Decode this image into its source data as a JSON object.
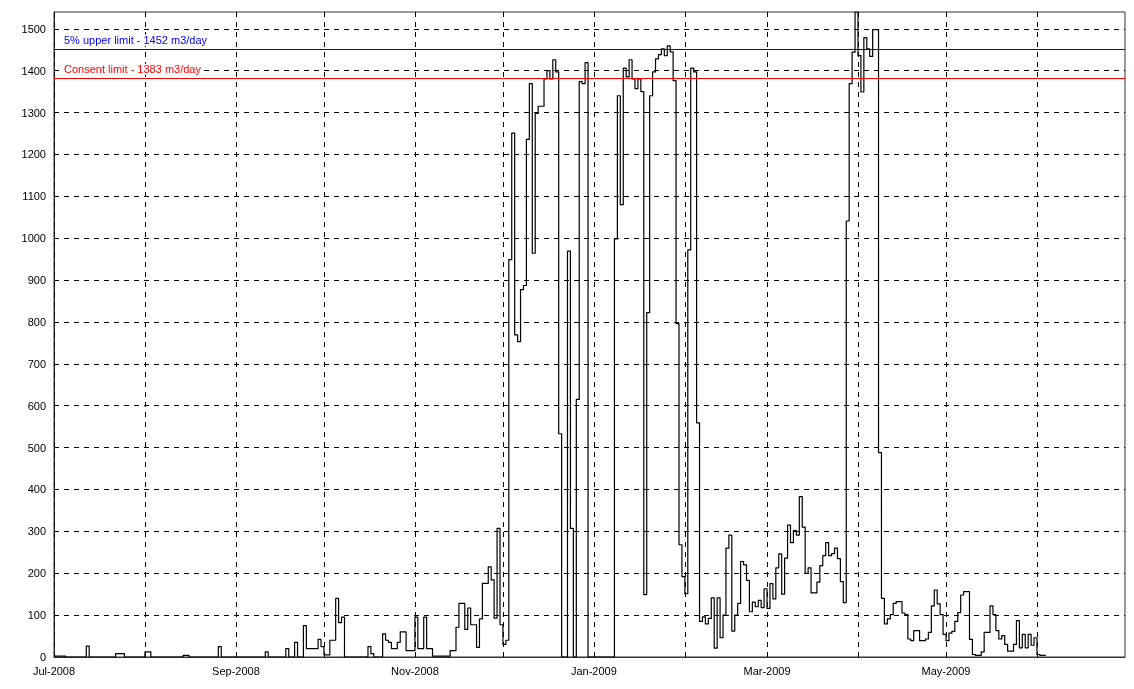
{
  "chart_data": {
    "type": "step",
    "xlim": [
      "2008-07-01",
      "2009-07-01"
    ],
    "xticks": [
      {
        "value": "2008-07-01",
        "label": "Jul-2008"
      },
      {
        "value": "2008-08-01",
        "label": null
      },
      {
        "value": "2008-09-01",
        "label": "Sep-2008"
      },
      {
        "value": "2008-10-01",
        "label": null
      },
      {
        "value": "2008-11-01",
        "label": "Nov-2008"
      },
      {
        "value": "2008-12-01",
        "label": null
      },
      {
        "value": "2009-01-01",
        "label": "Jan-2009"
      },
      {
        "value": "2009-02-01",
        "label": null
      },
      {
        "value": "2009-03-01",
        "label": "Mar-2009"
      },
      {
        "value": "2009-04-01",
        "label": null
      },
      {
        "value": "2009-05-01",
        "label": "May-2009"
      },
      {
        "value": "2009-06-01",
        "label": null
      }
    ],
    "ylim": [
      0,
      1540
    ],
    "yticks": [
      0,
      100,
      200,
      300,
      400,
      500,
      600,
      700,
      800,
      900,
      1000,
      1100,
      1200,
      1300,
      1400,
      1500
    ],
    "grid": true,
    "marker": "none",
    "line_style": "solid",
    "ref_lines": [
      {
        "axis": "y",
        "value": 1452,
        "label": "5% upper limit - 1452 m3/day",
        "color": "#0000ff"
      },
      {
        "axis": "y",
        "value": 1383,
        "label": "Consent limit - 1383 m3/day",
        "color": "#ff0000"
      }
    ],
    "series": [
      {
        "color": "#000000",
        "x": [
          "2008-07-01",
          "2008-07-05",
          "2008-07-12",
          "2008-07-13",
          "2008-07-22",
          "2008-07-25",
          "2008-08-01",
          "2008-08-03",
          "2008-08-14",
          "2008-08-16",
          "2008-08-26",
          "2008-08-27",
          "2008-09-11",
          "2008-09-12",
          "2008-09-18",
          "2008-09-19",
          "2008-09-21",
          "2008-09-22",
          "2008-09-24",
          "2008-09-25",
          "2008-09-29",
          "2008-09-30",
          "2008-10-01",
          "2008-10-03",
          "2008-10-05",
          "2008-10-06",
          "2008-10-07",
          "2008-10-08",
          "2008-10-16",
          "2008-10-17",
          "2008-10-18",
          "2008-10-21",
          "2008-10-22",
          "2008-10-23",
          "2008-10-24",
          "2008-10-26",
          "2008-10-27",
          "2008-10-29",
          "2008-11-01",
          "2008-11-02",
          "2008-11-04",
          "2008-11-05",
          "2008-11-07",
          "2008-11-13",
          "2008-11-15",
          "2008-11-16",
          "2008-11-18",
          "2008-11-19",
          "2008-11-20",
          "2008-11-22",
          "2008-11-23",
          "2008-11-24",
          "2008-11-26",
          "2008-11-27",
          "2008-11-28",
          "2008-11-29",
          "2008-11-30",
          "2008-12-01",
          "2008-12-02",
          "2008-12-03",
          "2008-12-04",
          "2008-12-05",
          "2008-12-06",
          "2008-12-07",
          "2008-12-08",
          "2008-12-09",
          "2008-12-10",
          "2008-12-11",
          "2008-12-12",
          "2008-12-13",
          "2008-12-15",
          "2008-12-16",
          "2008-12-17",
          "2008-12-18",
          "2008-12-19",
          "2008-12-20",
          "2008-12-21",
          "2008-12-23",
          "2008-12-24",
          "2008-12-25",
          "2008-12-26",
          "2008-12-27",
          "2008-12-28",
          "2008-12-29",
          "2008-12-30",
          "2009-01-08",
          "2009-01-09",
          "2009-01-10",
          "2009-01-11",
          "2009-01-12",
          "2009-01-13",
          "2009-01-14",
          "2009-01-15",
          "2009-01-16",
          "2009-01-17",
          "2009-01-18",
          "2009-01-19",
          "2009-01-20",
          "2009-01-21",
          "2009-01-22",
          "2009-01-23",
          "2009-01-24",
          "2009-01-25",
          "2009-01-26",
          "2009-01-27",
          "2009-01-28",
          "2009-01-29",
          "2009-01-30",
          "2009-01-31",
          "2009-02-01",
          "2009-02-02",
          "2009-02-03",
          "2009-02-04",
          "2009-02-05",
          "2009-02-06",
          "2009-02-07",
          "2009-02-08",
          "2009-02-09",
          "2009-02-10",
          "2009-02-11",
          "2009-02-12",
          "2009-02-13",
          "2009-02-14",
          "2009-02-15",
          "2009-02-16",
          "2009-02-17",
          "2009-02-18",
          "2009-02-19",
          "2009-02-20",
          "2009-02-21",
          "2009-02-22",
          "2009-02-23",
          "2009-02-24",
          "2009-02-25",
          "2009-02-26",
          "2009-02-27",
          "2009-02-28",
          "2009-03-01",
          "2009-03-02",
          "2009-03-03",
          "2009-03-04",
          "2009-03-05",
          "2009-03-06",
          "2009-03-07",
          "2009-03-08",
          "2009-03-09",
          "2009-03-10",
          "2009-03-11",
          "2009-03-12",
          "2009-03-13",
          "2009-03-14",
          "2009-03-15",
          "2009-03-16",
          "2009-03-18",
          "2009-03-19",
          "2009-03-20",
          "2009-03-21",
          "2009-03-22",
          "2009-03-23",
          "2009-03-24",
          "2009-03-25",
          "2009-03-26",
          "2009-03-27",
          "2009-03-28",
          "2009-03-29",
          "2009-03-30",
          "2009-03-31",
          "2009-04-01",
          "2009-04-02",
          "2009-04-03",
          "2009-04-04",
          "2009-04-05",
          "2009-04-06",
          "2009-04-08",
          "2009-04-09",
          "2009-04-10",
          "2009-04-11",
          "2009-04-12",
          "2009-04-13",
          "2009-04-14",
          "2009-04-16",
          "2009-04-17",
          "2009-04-18",
          "2009-04-19",
          "2009-04-20",
          "2009-04-22",
          "2009-04-24",
          "2009-04-25",
          "2009-04-26",
          "2009-04-27",
          "2009-04-28",
          "2009-04-29",
          "2009-04-30",
          "2009-05-01",
          "2009-05-02",
          "2009-05-03",
          "2009-05-04",
          "2009-05-05",
          "2009-05-06",
          "2009-05-07",
          "2009-05-09",
          "2009-05-10",
          "2009-05-11",
          "2009-05-13",
          "2009-05-14",
          "2009-05-16",
          "2009-05-17",
          "2009-05-18",
          "2009-05-19",
          "2009-05-20",
          "2009-05-21",
          "2009-05-22",
          "2009-05-24",
          "2009-05-25",
          "2009-05-26",
          "2009-05-27",
          "2009-05-28",
          "2009-05-29",
          "2009-05-30",
          "2009-05-31",
          "2009-06-01",
          "2009-06-02",
          "2009-06-04"
        ],
        "values": [
          2,
          0,
          26,
          0,
          8,
          0,
          12,
          0,
          4,
          0,
          25,
          0,
          12,
          0,
          20,
          0,
          35,
          0,
          75,
          20,
          42,
          25,
          5,
          40,
          140,
          82,
          95,
          0,
          25,
          8,
          0,
          55,
          40,
          35,
          20,
          35,
          60,
          15,
          95,
          20,
          95,
          20,
          2,
          15,
          71,
          128,
          66,
          117,
          77,
          23,
          91,
          176,
          215,
          184,
          93,
          307,
          77,
          30,
          40,
          949,
          1251,
          769,
          753,
          877,
          887,
          1236,
          1369,
          964,
          1298,
          1315,
          1380,
          1400,
          1380,
          1426,
          1397,
          533,
          0,
          969,
          307,
          0,
          615,
          1374,
          1369,
          1419,
          0,
          998,
          1340,
          1080,
          1406,
          1385,
          1426,
          1380,
          1357,
          1380,
          1350,
          149,
          822,
          1340,
          1397,
          1428,
          1438,
          1452,
          1436,
          1459,
          1445,
          1376,
          796,
          268,
          192,
          151,
          972,
          1406,
          1397,
          559,
          85,
          96,
          79,
          92,
          141,
          21,
          141,
          46,
          100,
          260,
          291,
          62,
          100,
          128,
          228,
          220,
          183,
          108,
          131,
          120,
          135,
          118,
          163,
          116,
          175,
          139,
          213,
          246,
          150,
          236,
          315,
          273,
          302,
          291,
          383,
          310,
          200,
          213,
          153,
          179,
          218,
          242,
          273,
          242,
          247,
          260,
          235,
          180,
          130,
          1041,
          1369,
          1444,
          1540,
          1436,
          1349,
          1479,
          1452,
          1434,
          1498,
          488,
          140,
          79,
          91,
          101,
          128,
          132,
          105,
          101,
          43,
          39,
          63,
          39,
          43,
          59,
          122,
          160,
          127,
          101,
          54,
          39,
          57,
          61,
          85,
          106,
          148,
          156,
          42,
          6,
          4,
          12,
          59,
          122,
          101,
          63,
          43,
          51,
          30,
          14,
          30,
          87,
          22,
          54,
          22,
          54,
          28,
          46,
          6,
          4,
          4
        ]
      }
    ]
  }
}
